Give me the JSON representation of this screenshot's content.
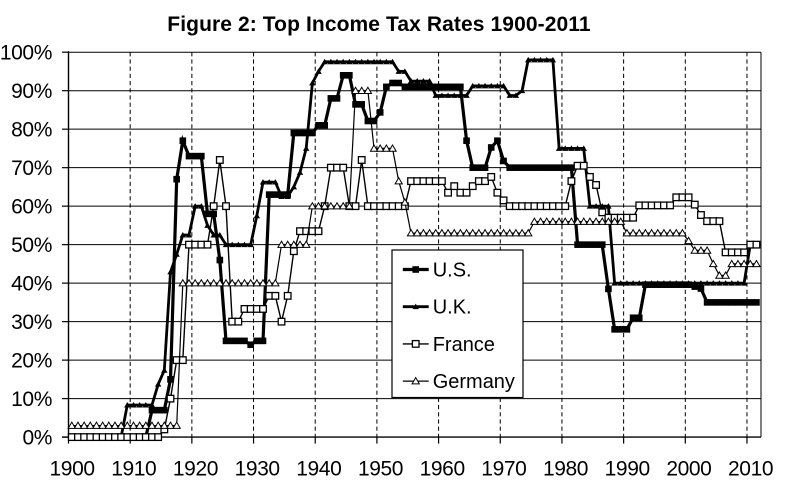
{
  "title": "Figure 2: Top Income Tax Rates 1900-2011",
  "axes": {
    "y_tick_labels": [
      "0%",
      "10%",
      "20%",
      "30%",
      "40%",
      "50%",
      "60%",
      "70%",
      "80%",
      "90%",
      "100%"
    ],
    "y_ticks": [
      0,
      10,
      20,
      30,
      40,
      50,
      60,
      70,
      80,
      90,
      100
    ],
    "ylim": [
      0,
      100
    ],
    "x_tick_labels": [
      "1900",
      "1910",
      "1920",
      "1930",
      "1940",
      "1950",
      "1960",
      "1970",
      "1980",
      "1990",
      "2000",
      "2010"
    ],
    "x_ticks": [
      1900,
      1910,
      1920,
      1930,
      1940,
      1950,
      1960,
      1970,
      1980,
      1990,
      2000,
      2010
    ],
    "xlim": [
      1900,
      2012
    ],
    "grid_horizontal": "solid",
    "grid_vertical": "dashed"
  },
  "legend": {
    "position": "center",
    "entries": [
      "U.S.",
      "U.K.",
      "France",
      "Germany"
    ]
  },
  "colors": {
    "foreground": "#000000",
    "background": "#ffffff"
  },
  "chart_data": {
    "type": "line",
    "title": "Figure 2: Top Income Tax Rates 1900-2011",
    "xlabel": "",
    "ylabel": "",
    "ylim": [
      0,
      100
    ],
    "grid": true,
    "legend_position": "center",
    "x_years": [
      1900,
      1901,
      1902,
      1903,
      1904,
      1905,
      1906,
      1907,
      1908,
      1909,
      1910,
      1911,
      1912,
      1913,
      1914,
      1915,
      1916,
      1917,
      1918,
      1919,
      1920,
      1921,
      1922,
      1923,
      1924,
      1925,
      1926,
      1927,
      1928,
      1929,
      1930,
      1931,
      1932,
      1933,
      1934,
      1935,
      1936,
      1937,
      1938,
      1939,
      1940,
      1941,
      1942,
      1943,
      1944,
      1945,
      1946,
      1947,
      1948,
      1949,
      1950,
      1951,
      1952,
      1953,
      1954,
      1955,
      1956,
      1957,
      1958,
      1959,
      1960,
      1961,
      1962,
      1963,
      1964,
      1965,
      1966,
      1967,
      1968,
      1969,
      1970,
      1971,
      1972,
      1973,
      1974,
      1975,
      1976,
      1977,
      1978,
      1979,
      1980,
      1981,
      1982,
      1983,
      1984,
      1985,
      1986,
      1987,
      1988,
      1989,
      1990,
      1991,
      1992,
      1993,
      1994,
      1995,
      1996,
      1997,
      1998,
      1999,
      2000,
      2001,
      2002,
      2003,
      2004,
      2005,
      2006,
      2007,
      2008,
      2009,
      2010,
      2011
    ],
    "series": [
      {
        "name": "U.S.",
        "marker": "filled-square",
        "line_width": 3.2,
        "marker_size": 6.6,
        "color": "#000000",
        "values": [
          0,
          0,
          0,
          0,
          0,
          0,
          0,
          0,
          0,
          0,
          0,
          0,
          0,
          7,
          7,
          7,
          15,
          67,
          77,
          73,
          73,
          73,
          58,
          58,
          46,
          25,
          25,
          25,
          25,
          24,
          25,
          25,
          63,
          63,
          63,
          63,
          79,
          79,
          79,
          79,
          81,
          81,
          88,
          88,
          94,
          94,
          86.45,
          86.45,
          82.13,
          82.13,
          84.36,
          91,
          92,
          92,
          91,
          91,
          91,
          91,
          91,
          91,
          91,
          91,
          91,
          91,
          77,
          70,
          70,
          70,
          75.25,
          77,
          71.75,
          70,
          70,
          70,
          70,
          70,
          70,
          70,
          70,
          70,
          70,
          70,
          50,
          50,
          50,
          50,
          50,
          38.5,
          28,
          28,
          28,
          31,
          31,
          39.6,
          39.6,
          39.6,
          39.6,
          39.6,
          39.6,
          39.6,
          39.6,
          39.1,
          38.6,
          35,
          35,
          35,
          35,
          35,
          35,
          35,
          35,
          35
        ]
      },
      {
        "name": "U.K.",
        "marker": "filled-triangle",
        "line_width": 2.8,
        "marker_size": 5.8,
        "color": "#000000",
        "values": [
          0,
          0,
          0,
          0,
          0,
          0,
          0,
          0,
          0,
          8.33,
          8.33,
          8.33,
          8.33,
          8.33,
          13.75,
          17.35,
          42.9,
          47.5,
          52.5,
          52.5,
          60,
          60,
          55,
          52.5,
          52.5,
          50,
          50,
          50,
          50,
          50,
          57.5,
          66.25,
          66.25,
          66.25,
          62.5,
          62.5,
          65,
          68.75,
          75,
          92,
          95,
          97.5,
          97.5,
          97.5,
          97.5,
          97.5,
          97.5,
          97.5,
          97.5,
          97.5,
          97.5,
          97.5,
          97.5,
          95,
          95,
          92.5,
          92.5,
          92.5,
          92.5,
          88.75,
          88.75,
          88.75,
          88.75,
          88.75,
          88.75,
          91.25,
          91.25,
          91.25,
          91.25,
          91.25,
          91.25,
          88.75,
          88.75,
          90,
          98,
          98,
          98,
          98,
          98,
          75,
          75,
          75,
          75,
          75,
          60,
          60,
          60,
          60,
          40,
          40,
          40,
          40,
          40,
          40,
          40,
          40,
          40,
          40,
          40,
          40,
          40,
          40,
          40,
          40,
          40,
          40,
          40,
          40,
          40,
          40,
          50,
          50
        ]
      },
      {
        "name": "France",
        "marker": "open-square",
        "line_width": 1.4,
        "marker_size": 6.6,
        "color": "#000000",
        "values": [
          0,
          0,
          0,
          0,
          0,
          0,
          0,
          0,
          0,
          0,
          0,
          0,
          0,
          0,
          0,
          2,
          10,
          20,
          20,
          50,
          50,
          50,
          50,
          60,
          72,
          60,
          30,
          30,
          33.3,
          33.3,
          33.3,
          33.3,
          36.7,
          36.7,
          30,
          36.7,
          48.3,
          53.5,
          53.5,
          53.5,
          53.5,
          60,
          70,
          70,
          70,
          60,
          60,
          72,
          60,
          60,
          60,
          60,
          60,
          60,
          60,
          66.5,
          66.5,
          66.5,
          66.5,
          66.5,
          66.5,
          63.5,
          65.2,
          63.5,
          63.5,
          65.2,
          66.5,
          66.5,
          67.6,
          63.5,
          61.5,
          60,
          60,
          60,
          60,
          60,
          60,
          60,
          60,
          60,
          60,
          66.5,
          70.5,
          70.5,
          67.6,
          65.5,
          58.4,
          57,
          57,
          57,
          57,
          57,
          60.2,
          60.2,
          60.2,
          60.2,
          60.2,
          60.2,
          62.3,
          62.3,
          62.3,
          60.4,
          57.7,
          56.1,
          56.1,
          56.1,
          48,
          48,
          48,
          48,
          50,
          50
        ]
      },
      {
        "name": "Germany",
        "marker": "open-triangle",
        "line_width": 1.2,
        "marker_size": 6.6,
        "color": "#000000",
        "values": [
          3,
          3,
          3,
          3,
          3,
          3,
          3,
          3,
          3,
          3,
          3,
          3,
          3,
          3,
          3,
          3,
          3,
          3,
          40,
          40,
          40,
          40,
          40,
          40,
          40,
          40,
          40,
          40,
          40,
          40,
          40,
          40,
          40,
          40,
          50,
          50,
          50,
          50,
          50,
          60,
          60,
          60,
          60,
          60,
          60,
          60,
          90,
          90,
          90,
          75,
          75,
          75,
          75,
          66.5,
          61,
          53,
          53,
          53,
          53,
          53,
          53,
          53,
          53,
          53,
          53,
          53,
          53,
          53,
          53,
          53,
          53,
          53,
          53,
          53,
          53,
          56,
          56,
          56,
          56,
          56,
          56,
          56,
          56,
          56,
          56,
          56,
          56,
          56,
          56,
          56,
          53,
          53,
          53,
          53,
          53,
          53,
          53,
          53,
          53,
          53,
          51,
          48.5,
          48.5,
          48.5,
          45,
          42,
          42,
          45,
          45,
          45,
          45,
          45
        ]
      }
    ]
  }
}
